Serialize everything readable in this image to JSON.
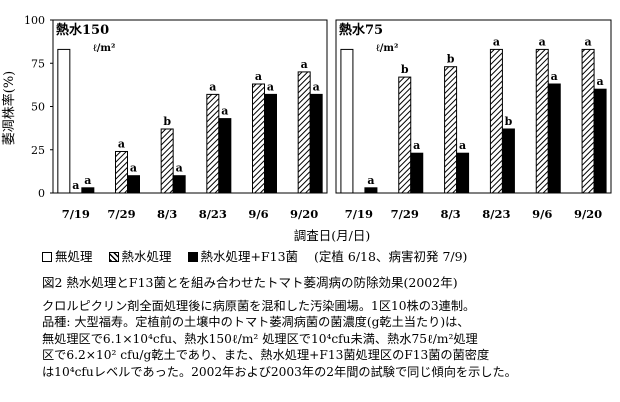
{
  "chart_data": {
    "type": "bar",
    "ylabel": "萎凋株率(%)",
    "xlabel": "調査日(月/日)",
    "ylim": [
      0,
      100
    ],
    "yticks": [
      "0",
      "25",
      "50",
      "75",
      "100"
    ],
    "panels": [
      {
        "title": "熱水150",
        "unit_label": "ℓ/m²",
        "unit_prefix": "2",
        "categories": [
          "7/19",
          "7/29",
          "8/3",
          "8/23",
          "9/6",
          "9/20"
        ],
        "series": [
          {
            "name": "無処理",
            "values": [
              83,
              0,
              0,
              0,
              0,
              0
            ],
            "labels": [
              "",
              "",
              "",
              "",
              "",
              ""
            ]
          },
          {
            "name": "熱水処理",
            "values": [
              0,
              24,
              37,
              57,
              63,
              70
            ],
            "labels": [
              "a",
              "a",
              "b",
              "a",
              "a",
              "a"
            ]
          },
          {
            "name": "熱水処理+F13菌",
            "values": [
              3,
              10,
              10,
              43,
              57,
              57
            ],
            "labels": [
              "a",
              "a",
              "a",
              "a",
              "a",
              "a"
            ]
          }
        ]
      },
      {
        "title": "熱水75",
        "unit_label": "ℓ/m²",
        "unit_prefix": "7",
        "categories": [
          "7/19",
          "7/29",
          "8/3",
          "8/23",
          "9/6",
          "9/20"
        ],
        "series": [
          {
            "name": "無処理",
            "values": [
              83,
              0,
              0,
              0,
              0,
              0
            ],
            "labels": [
              "",
              "",
              "",
              "",
              "",
              ""
            ]
          },
          {
            "name": "熱水処理",
            "values": [
              0,
              67,
              73,
              83,
              83,
              83
            ],
            "labels": [
              "",
              "b",
              "b",
              "a",
              "a",
              "a"
            ]
          },
          {
            "name": "熱水処理+F13菌",
            "values": [
              3,
              23,
              23,
              37,
              63,
              60
            ],
            "labels": [
              "a",
              "a",
              "a",
              "b",
              "a",
              "a"
            ]
          }
        ]
      }
    ]
  },
  "legend": {
    "items": [
      "無処理",
      "熱水処理",
      "熱水処理+F13菌"
    ],
    "note": "(定植 6/18、病害初発 7/9)"
  },
  "caption": "図2 熱水処理とF13菌とを組み合わせたトマト萎凋病の防除効果(2002年)",
  "notes": [
    "クロルピクリン剤全面処理後に病原菌を混和した汚染圃場。1区10株の3連制。",
    "品種: 大型福寿。定植前の土壌中のトマト萎凋病菌の菌濃度(g乾土当たり)は、",
    "無処理区で6.1×10⁴cfu、熱水150ℓ/m² 処理区で10⁴cfu未満、熱水75ℓ/m²処理",
    "区で6.2×10² cfu/g乾土であり、また、熱水処理+F13菌処理区のF13菌の菌密度",
    "は10⁴cfuレベルであった。2002年および2003年の2年間の試験で同じ傾向を示した。"
  ]
}
